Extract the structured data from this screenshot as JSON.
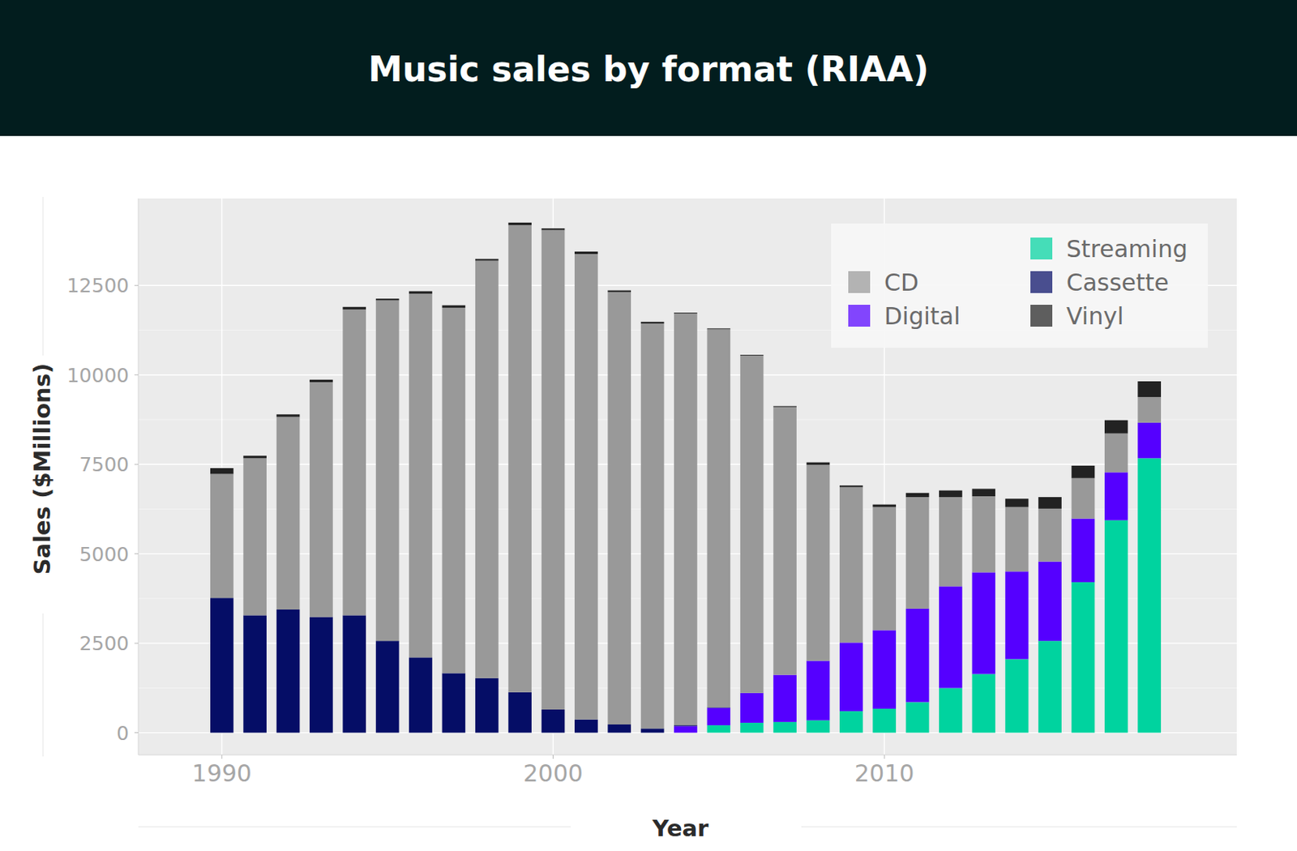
{
  "chart_data": {
    "type": "bar",
    "title": "Music sales by format (RIAA)",
    "x_label": "Year",
    "y_label": "Sales ($Millions)",
    "stacked": true,
    "grid": true,
    "legend": "top-right",
    "x": [
      1990,
      1991,
      1992,
      1993,
      1994,
      1995,
      1996,
      1997,
      1998,
      1999,
      2000,
      2001,
      2002,
      2003,
      2004,
      2005,
      2006,
      2007,
      2008,
      2009,
      2010,
      2011,
      2012,
      2013,
      2014,
      2015,
      2016,
      2017,
      2018
    ],
    "xlim": [
      1987.48,
      2020.64
    ],
    "xticks": [
      1990,
      2000,
      2010
    ],
    "ylim": [
      -620,
      14930
    ],
    "yticks": [
      0,
      2500,
      5000,
      7500,
      10000,
      12500
    ],
    "series": [
      {
        "name": "Streaming",
        "color": "#00d39f",
        "values": [
          0,
          0,
          0,
          0,
          0,
          0,
          0,
          0,
          0,
          0,
          0,
          0,
          0,
          0,
          0,
          208,
          277,
          300,
          347,
          601,
          670,
          855,
          1248,
          1640,
          2056,
          2565,
          4205,
          5938,
          7671
        ]
      },
      {
        "name": "Digital",
        "color": "#5500ff",
        "values": [
          0,
          0,
          0,
          0,
          0,
          0,
          0,
          0,
          0,
          0,
          0,
          0,
          0,
          0,
          183,
          485,
          832,
          1317,
          1663,
          1917,
          2195,
          2611,
          2842,
          2842,
          2450,
          2218,
          1779,
          1340,
          994
        ]
      },
      {
        "name": "Cassette",
        "color": "#050d66",
        "values": [
          3766,
          3281,
          3443,
          3235,
          3281,
          2565,
          2103,
          1664,
          1525,
          1132,
          647,
          370,
          231,
          116,
          24,
          13,
          4,
          0,
          0,
          0,
          0,
          0,
          0,
          0,
          0,
          0,
          0,
          0,
          0
        ]
      },
      {
        "name": "CD",
        "color": "#999999",
        "values": [
          3466,
          4390,
          5383,
          6562,
          8549,
          9519,
          10166,
          10212,
          11668,
          13055,
          13401,
          13008,
          12084,
          11321,
          11507,
          10569,
          9423,
          7486,
          5476,
          4344,
          3443,
          3119,
          2495,
          2126,
          1802,
          1479,
          1132,
          1086,
          716
        ]
      },
      {
        "name": "Vinyl",
        "color": "#222222",
        "values": [
          162,
          69,
          70,
          69,
          69,
          46,
          69,
          69,
          47,
          69,
          46,
          69,
          46,
          46,
          24,
          23,
          23,
          24,
          69,
          47,
          69,
          116,
          185,
          208,
          231,
          323,
          347,
          370,
          439
        ]
      }
    ]
  }
}
